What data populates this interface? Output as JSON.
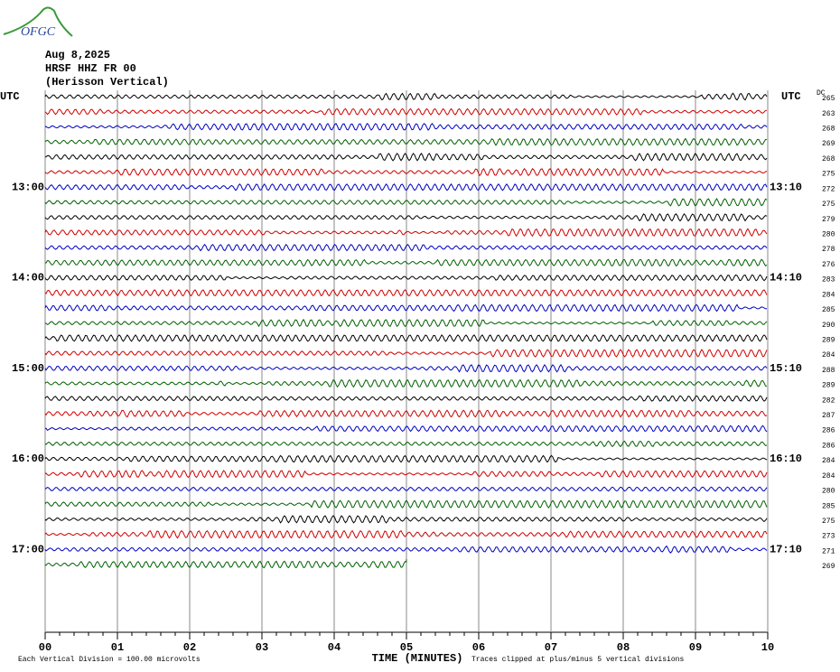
{
  "header": {
    "logo": "OFGC",
    "date": "Aug 8,2025",
    "station": "HRSF HHZ FR 00",
    "location": "(Herisson Vertical)"
  },
  "chart_data": {
    "type": "helicorder",
    "x_label": "TIME (MINUTES)",
    "xlim": [
      0,
      10
    ],
    "xticks": [
      {
        "value": 0,
        "label": "00"
      },
      {
        "value": 1,
        "label": "01"
      },
      {
        "value": 2,
        "label": "02"
      },
      {
        "value": 3,
        "label": "03"
      },
      {
        "value": 4,
        "label": "04"
      },
      {
        "value": 5,
        "label": "05"
      },
      {
        "value": 6,
        "label": "06"
      },
      {
        "value": 7,
        "label": "07"
      },
      {
        "value": 8,
        "label": "08"
      },
      {
        "value": 9,
        "label": "09"
      },
      {
        "value": 10,
        "label": "10"
      }
    ],
    "colors": [
      "#000000",
      "#d00000",
      "#0000c0",
      "#006000"
    ],
    "dc_label": "DC",
    "dc_values": [
      265,
      263,
      268,
      269,
      268,
      275,
      272,
      275,
      279,
      280,
      278,
      276,
      283,
      284,
      285,
      290,
      289,
      284,
      288,
      289,
      282,
      287,
      286,
      286,
      284,
      284,
      280,
      285,
      275,
      273,
      271,
      269
    ],
    "left_labels": [
      "UTC",
      null,
      null,
      null,
      null,
      null,
      "13:00",
      null,
      null,
      null,
      null,
      null,
      "14:00",
      null,
      null,
      null,
      null,
      null,
      "15:00",
      null,
      null,
      null,
      null,
      null,
      "16:00",
      null,
      null,
      null,
      null,
      null,
      "17:00",
      null
    ],
    "right_labels": [
      "UTC",
      null,
      null,
      null,
      null,
      null,
      "13:10",
      null,
      null,
      null,
      null,
      null,
      "14:10",
      null,
      null,
      null,
      null,
      null,
      "15:10",
      null,
      null,
      null,
      null,
      null,
      "16:10",
      null,
      null,
      null,
      null,
      null,
      "17:10",
      null
    ],
    "last_row_end": 5,
    "footer_left": "Each Vertical Division =  100.00 microvolts",
    "footer_right": "Traces clipped at plus/minus 5 vertical divisions"
  }
}
